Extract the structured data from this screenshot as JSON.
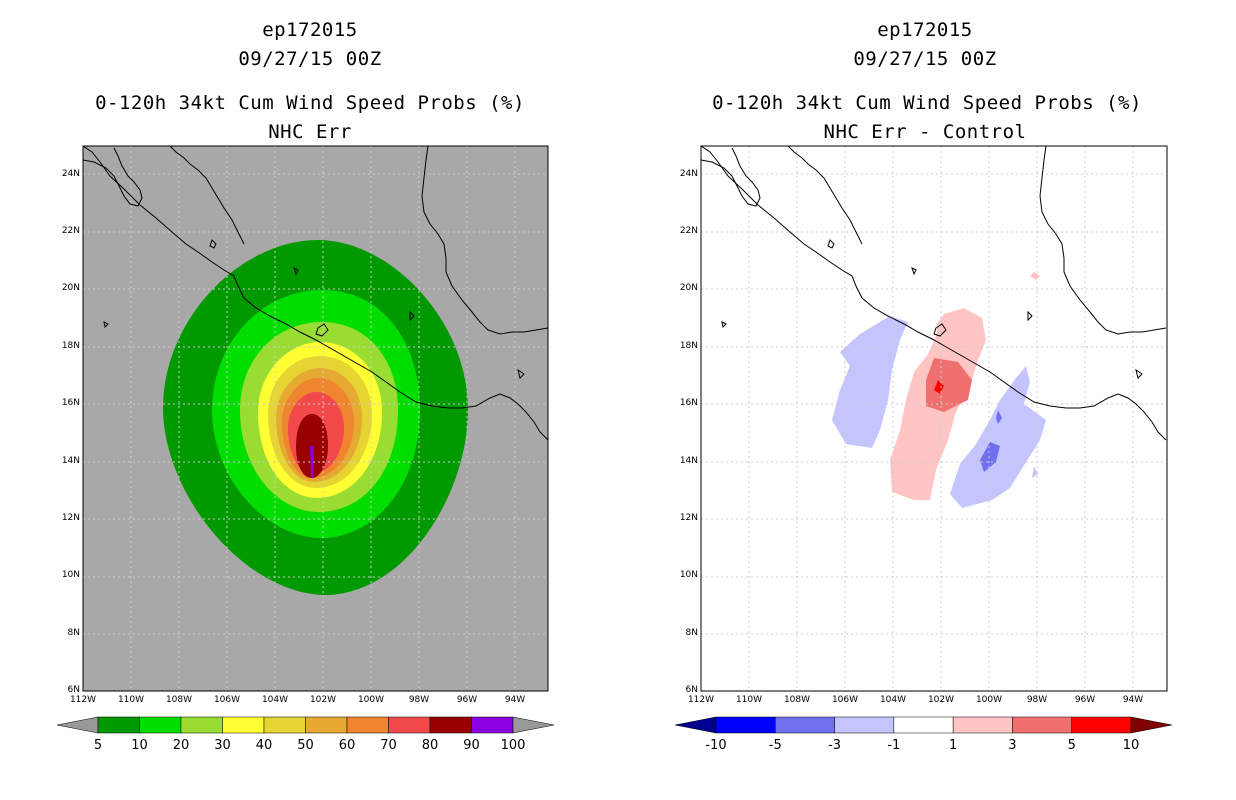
{
  "panels": {
    "left": {
      "storm_id": "ep172015",
      "datetime": "09/27/15 00Z",
      "product": "0-120h 34kt Cum Wind Speed Probs (%)",
      "subtitle": "NHC Err",
      "legend": {
        "colors": [
          "#009900",
          "#00dd00",
          "#99dd33",
          "#ffff33",
          "#e6d433",
          "#e6aa33",
          "#f08530",
          "#f24a4a",
          "#990000",
          "#8a00e0"
        ],
        "end_colors": [
          "#999999",
          "#999999"
        ],
        "labels": [
          "5",
          "10",
          "20",
          "30",
          "40",
          "50",
          "60",
          "70",
          "80",
          "90",
          "100"
        ]
      }
    },
    "right": {
      "storm_id": "ep172015",
      "datetime": "09/27/15 00Z",
      "product": "0-120h 34kt Cum Wind Speed Probs (%)",
      "subtitle": "NHC Err - Control",
      "legend": {
        "colors": [
          "#0000ff",
          "#7070ee",
          "#c4c4ff",
          "#ffffff",
          "#ffc4c4",
          "#f07070",
          "#ff0000"
        ],
        "end_colors": [
          "#000090",
          "#800000"
        ],
        "labels": [
          "-10",
          "-5",
          "-3",
          "-1",
          "1",
          "3",
          "5",
          "10"
        ]
      }
    }
  },
  "map": {
    "lon_ticks": [
      "112W",
      "110W",
      "108W",
      "106W",
      "104W",
      "102W",
      "100W",
      "98W",
      "96W",
      "94W"
    ],
    "lat_ticks": [
      "6N",
      "8N",
      "10N",
      "12N",
      "14N",
      "16N",
      "18N",
      "20N",
      "22N",
      "24N"
    ],
    "lon_range": [
      -112,
      -92.5
    ],
    "lat_range": [
      6,
      25
    ]
  }
}
